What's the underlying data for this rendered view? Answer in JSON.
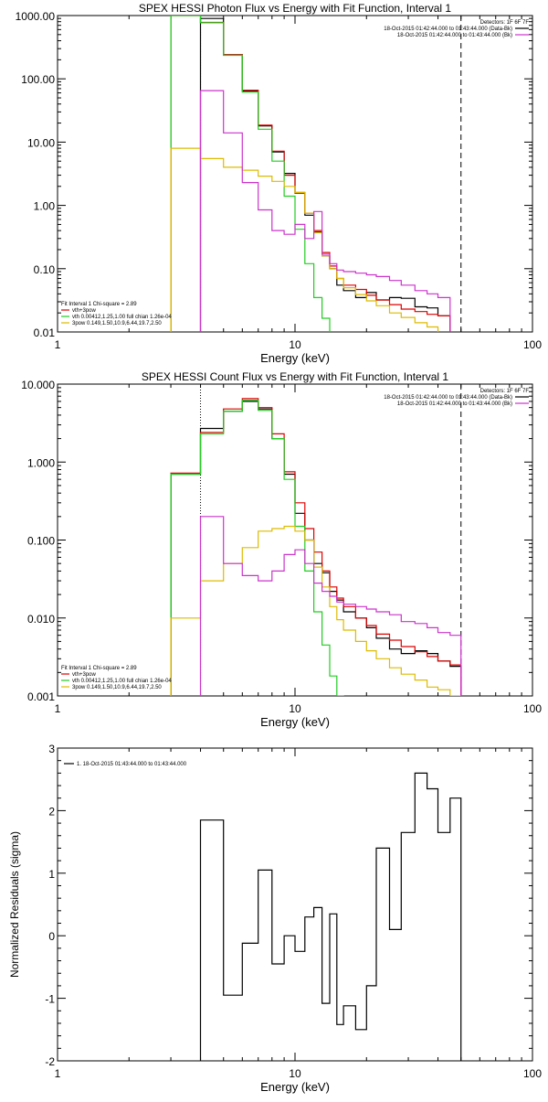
{
  "chart_data": [
    {
      "type": "line",
      "title": "SPEX HESSI Photon Flux vs Energy with Fit Function, Interval 1",
      "xlabel": "Energy (keV)",
      "ylabel": "",
      "xscale": "log",
      "yscale": "log",
      "xlim": [
        1,
        100
      ],
      "ylim": [
        0.01,
        1000
      ],
      "xticks": [
        {
          "v": 1,
          "label": "1"
        },
        {
          "v": 10,
          "label": "10"
        },
        {
          "v": 100,
          "label": "100"
        }
      ],
      "yticks": [
        {
          "v": 0.01,
          "label": "0.01"
        },
        {
          "v": 0.1,
          "label": "0.10"
        },
        {
          "v": 1,
          "label": "1.00"
        },
        {
          "v": 10,
          "label": "10.00"
        },
        {
          "v": 100,
          "label": "100.00"
        },
        {
          "v": 1000,
          "label": "1000.00"
        }
      ],
      "vlines": [
        {
          "x": 4.0,
          "color": "#cc33cc",
          "style": "dotted"
        },
        {
          "x": 50.0,
          "color": "#000000",
          "style": "dashed"
        }
      ],
      "legend_top": {
        "position": "top-right",
        "lines": [
          {
            "text": "Detectors: 1F 6F 7F",
            "color": ""
          },
          {
            "text": "18-Oct-2015 01:42:44.000 to 01:43:44.000 (Data-Bk)",
            "color": "#000000"
          },
          {
            "text": "18-Oct-2015 01:42:44.000 to 01:43:44.000 (Bk)",
            "color": "#cc33cc"
          }
        ]
      },
      "legend_bottom": {
        "position": "bottom-left",
        "lines": [
          {
            "text": "Fit Interval 1   Chi-square = 2.89",
            "color": ""
          },
          {
            "text": "vth+3pow",
            "color": "#dd0000"
          },
          {
            "text": "vth 0.00412,1.25,1.00  full chian 1.26e-04",
            "color": "#22cc22"
          },
          {
            "text": "3pow 0.149,1.50,10.9,6.44,19.7,2.50",
            "color": "#ddbb00"
          }
        ]
      },
      "edges": [
        3,
        4,
        5,
        6,
        7,
        8,
        9,
        10,
        11,
        12,
        13,
        14,
        15,
        16,
        18,
        20,
        22,
        25,
        28,
        32,
        36,
        40,
        45,
        50
      ],
      "series": [
        {
          "name": "Data-Bk",
          "color": "#000000",
          "start": 4.0,
          "values": [
            900,
            240,
            64,
            18,
            7,
            3.2,
            1.6,
            0.7,
            0.38,
            0.16,
            0.1,
            0.055,
            0.045,
            0.035,
            0.042,
            0.032,
            0.035,
            0.034,
            0.025,
            0.024,
            0.018
          ]
        },
        {
          "name": "vth+3pow",
          "color": "#dd0000",
          "start": 3.0,
          "values": [
            1000,
            780,
            240,
            66,
            18.5,
            7.2,
            3.0,
            1.55,
            0.75,
            0.4,
            0.18,
            0.11,
            0.07,
            0.055,
            0.047,
            0.038,
            0.032,
            0.027,
            0.023,
            0.021,
            0.019,
            0.018
          ]
        },
        {
          "name": "vth",
          "color": "#22cc22",
          "start": 3.0,
          "values": [
            1000,
            770,
            235,
            62,
            16,
            5.0,
            1.4,
            0.42,
            0.12,
            0.035,
            0.0165
          ]
        },
        {
          "name": "3pow",
          "color": "#ddbb00",
          "start": 3.0,
          "values": [
            8,
            5.5,
            4.0,
            3.6,
            2.9,
            2.4,
            2.0,
            1.6,
            0.75,
            0.37,
            0.16,
            0.1,
            0.07,
            0.05,
            0.039,
            0.031,
            0.026,
            0.02,
            0.017,
            0.014,
            0.012
          ]
        },
        {
          "name": "Bk",
          "color": "#cc33cc",
          "start": 4.0,
          "values": [
            65,
            14,
            2.3,
            0.85,
            0.4,
            0.35,
            0.5,
            0.3,
            0.8,
            0.17,
            0.12,
            0.095,
            0.09,
            0.085,
            0.08,
            0.075,
            0.065,
            0.055,
            0.045,
            0.04,
            0.035
          ]
        }
      ]
    },
    {
      "type": "line",
      "title": "SPEX HESSI Count Flux vs Energy with Fit Function, Interval 1",
      "xlabel": "Energy (keV)",
      "ylabel": "",
      "xscale": "log",
      "yscale": "log",
      "xlim": [
        1,
        100
      ],
      "ylim": [
        0.001,
        10
      ],
      "xticks": [
        {
          "v": 1,
          "label": "1"
        },
        {
          "v": 10,
          "label": "10"
        },
        {
          "v": 100,
          "label": "100"
        }
      ],
      "yticks": [
        {
          "v": 0.001,
          "label": "0.001"
        },
        {
          "v": 0.01,
          "label": "0.010"
        },
        {
          "v": 0.1,
          "label": "0.100"
        },
        {
          "v": 1,
          "label": "1.000"
        },
        {
          "v": 10,
          "label": "10.000"
        }
      ],
      "vlines": [
        {
          "x": 4.0,
          "color": "#000000",
          "style": "dotted"
        },
        {
          "x": 50.0,
          "color": "#000000",
          "style": "dashed"
        }
      ],
      "legend_top": {
        "position": "top-right",
        "lines": [
          {
            "text": "Detectors: 1F 6F 7F",
            "color": ""
          },
          {
            "text": "18-Oct-2015 01:42:44.000 to 01:43:44.000 (Data-Bk)",
            "color": "#000000"
          },
          {
            "text": "18-Oct-2015 01:42:44.000 to 01:43:44.000 (Bk)",
            "color": "#cc33cc"
          }
        ]
      },
      "legend_bottom": {
        "position": "bottom-left",
        "lines": [
          {
            "text": "Fit Interval 1   Chi-square = 2.89",
            "color": ""
          },
          {
            "text": "vth+3pow",
            "color": "#dd0000"
          },
          {
            "text": "vth 0.00412,1.25,1.00  full chian 1.26e-04",
            "color": "#22cc22"
          },
          {
            "text": "3pow 0.149,1.50,10.9,6.44,19.7,2.50",
            "color": "#ddbb00"
          }
        ]
      },
      "edges": [
        3,
        4,
        5,
        6,
        7,
        8,
        9,
        10,
        11,
        12,
        13,
        14,
        15,
        16,
        18,
        20,
        22,
        25,
        28,
        32,
        36,
        40,
        45,
        50
      ],
      "series": [
        {
          "name": "Data-Bk",
          "color": "#000000",
          "start": 3.0,
          "values": [
            0.7,
            2.7,
            4.5,
            6.0,
            4.8,
            2.0,
            0.7,
            0.22,
            0.1,
            0.05,
            0.038,
            0.022,
            0.017,
            0.012,
            0.01,
            0.0075,
            0.0055,
            0.004,
            0.0035,
            0.0038,
            0.0035,
            0.0028,
            0.0024
          ]
        },
        {
          "name": "vth+3pow",
          "color": "#dd0000",
          "start": 3.0,
          "values": [
            0.72,
            2.4,
            4.8,
            6.5,
            5.0,
            2.3,
            0.75,
            0.3,
            0.14,
            0.07,
            0.04,
            0.025,
            0.018,
            0.014,
            0.01,
            0.008,
            0.0062,
            0.0052,
            0.0043,
            0.0037,
            0.0032,
            0.0028,
            0.0025
          ]
        },
        {
          "name": "vth",
          "color": "#22cc22",
          "start": 3.0,
          "values": [
            0.7,
            2.3,
            4.5,
            6.2,
            4.6,
            2.0,
            0.6,
            0.15,
            0.04,
            0.012,
            0.0045,
            0.0018,
            0.001
          ]
        },
        {
          "name": "3pow",
          "color": "#ddbb00",
          "start": 3.0,
          "values": [
            0.01,
            0.03,
            0.05,
            0.08,
            0.13,
            0.14,
            0.15,
            0.13,
            0.1,
            0.045,
            0.025,
            0.014,
            0.0095,
            0.007,
            0.005,
            0.0038,
            0.003,
            0.0023,
            0.0019,
            0.0016,
            0.0013,
            0.0012,
            0.001
          ]
        },
        {
          "name": "Bk",
          "color": "#cc33cc",
          "start": 4.0,
          "values": [
            0.2,
            0.05,
            0.035,
            0.03,
            0.04,
            0.065,
            0.075,
            0.05,
            0.028,
            0.022,
            0.019,
            0.016,
            0.015,
            0.014,
            0.013,
            0.012,
            0.011,
            0.009,
            0.0085,
            0.0075,
            0.0065,
            0.006
          ]
        }
      ]
    },
    {
      "type": "line",
      "title": "",
      "xlabel": "Energy (keV)",
      "ylabel": "Normalized Residuals (sigma)",
      "xscale": "log",
      "yscale": "linear",
      "xlim": [
        1,
        100
      ],
      "ylim": [
        -2,
        3
      ],
      "xticks": [
        {
          "v": 1,
          "label": "1"
        },
        {
          "v": 10,
          "label": "10"
        },
        {
          "v": 100,
          "label": "100"
        }
      ],
      "yticks": [
        {
          "v": -2,
          "label": "-2"
        },
        {
          "v": -1,
          "label": "-1"
        },
        {
          "v": 0,
          "label": "0"
        },
        {
          "v": 1,
          "label": "1"
        },
        {
          "v": 2,
          "label": "2"
        },
        {
          "v": 3,
          "label": "3"
        }
      ],
      "legend_top": {
        "position": "top-left",
        "lines": [
          {
            "text": "1. 18-Oct-2015 01:43:44.000 to 01:43:44.000",
            "color": "#000000"
          }
        ]
      },
      "edges": [
        4,
        5,
        6,
        7,
        8,
        9,
        10,
        11,
        12,
        13,
        14,
        15,
        16,
        18,
        20,
        22,
        25,
        28,
        32,
        36,
        40,
        45,
        50
      ],
      "series": [
        {
          "name": "residuals",
          "color": "#000000",
          "start": 4.0,
          "drop_to_min": true,
          "values": [
            1.85,
            -0.95,
            -0.12,
            1.05,
            -0.45,
            0.0,
            -0.25,
            0.3,
            0.45,
            -1.08,
            0.35,
            -1.42,
            -1.12,
            -1.5,
            -0.8,
            1.4,
            0.1,
            1.65,
            2.6,
            2.35,
            1.65,
            2.2
          ]
        }
      ]
    }
  ]
}
